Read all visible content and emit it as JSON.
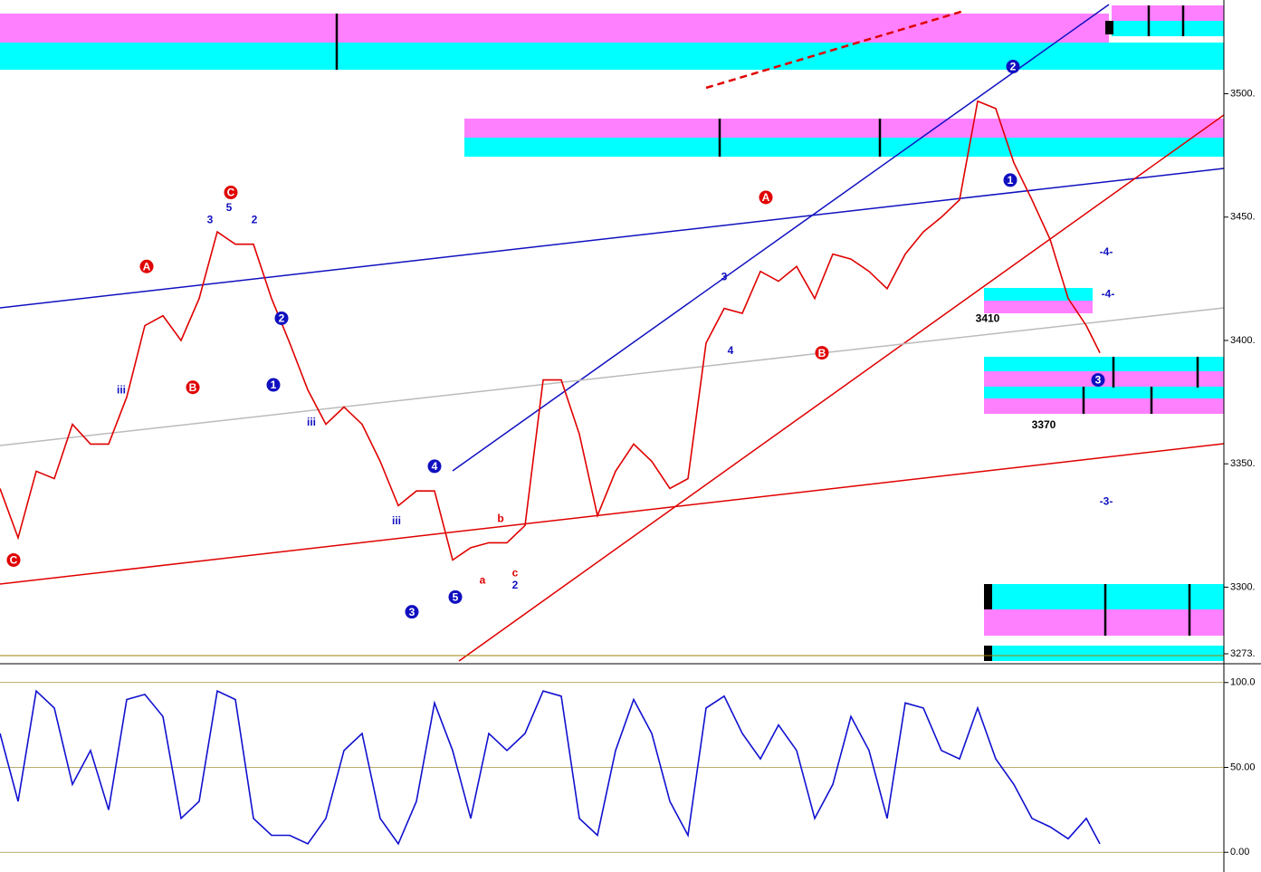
{
  "chart_data": [
    {
      "type": "line",
      "xlim": [
        0,
        135.2
      ],
      "ylim": [
        3273,
        3538
      ],
      "yticks": [
        {
          "value": 3500,
          "label": "3500."
        },
        {
          "value": 3450,
          "label": "3450."
        },
        {
          "value": 3400,
          "label": "3400."
        },
        {
          "value": 3350,
          "label": "3350."
        },
        {
          "value": 3300,
          "label": "3300."
        },
        {
          "value": 3273,
          "label": "3273."
        }
      ],
      "x": [
        0,
        2,
        4,
        6,
        8,
        10,
        12,
        14,
        16,
        18,
        20,
        22,
        24,
        26,
        28,
        30,
        32,
        34,
        36,
        38,
        40,
        42,
        44,
        46,
        48,
        50,
        52,
        54,
        56,
        58,
        60,
        62,
        64,
        66,
        68,
        70,
        72,
        74,
        76,
        78,
        80,
        82,
        84,
        86,
        88,
        90,
        92,
        94,
        96,
        98,
        100,
        102,
        104,
        106,
        108,
        110,
        112,
        114,
        116,
        118,
        120,
        121.5
      ],
      "series": [
        {
          "color": "#e00000",
          "values": [
            3340,
            3320,
            3347,
            3344,
            3366,
            3358,
            3358,
            3377,
            3406,
            3410,
            3400,
            3417,
            3444,
            3439,
            3439,
            3417,
            3399,
            3380,
            3366,
            3373,
            3366,
            3351,
            3333,
            3339,
            3339,
            3311,
            3316,
            3318,
            3318,
            3325,
            3384,
            3384,
            3362,
            3329,
            3347,
            3358,
            3351,
            3340,
            3344,
            3399,
            3413,
            3411,
            3428,
            3424,
            3430,
            3417,
            3435,
            3433,
            3428,
            3421,
            3435,
            3444,
            3450,
            3457,
            3497,
            3494,
            3472,
            3457,
            3441,
            3417,
            3406,
            3395
          ]
        }
      ],
      "annotations": [
        {
          "text": "C",
          "x": 1.5,
          "y": 3311,
          "color": "#e00000",
          "circled": true
        },
        {
          "text": "A",
          "x": 16.2,
          "y": 3430,
          "color": "#e00000",
          "circled": true
        },
        {
          "text": "B",
          "x": 21.3,
          "y": 3381,
          "color": "#e00000",
          "circled": true
        },
        {
          "text": "C",
          "x": 25.5,
          "y": 3460,
          "color": "#e00000",
          "circled": true
        },
        {
          "text": "1",
          "x": 30.2,
          "y": 3382,
          "color": "#1010c0",
          "circled": true
        },
        {
          "text": "2",
          "x": 31.1,
          "y": 3409,
          "color": "#1010c0",
          "circled": true
        },
        {
          "text": "3",
          "x": 45.5,
          "y": 3290,
          "color": "#1010c0",
          "circled": true
        },
        {
          "text": "4",
          "x": 48,
          "y": 3349,
          "color": "#1010c0",
          "circled": true
        },
        {
          "text": "5",
          "x": 50.3,
          "y": 3296,
          "color": "#1010c0",
          "circled": true
        },
        {
          "text": "A",
          "x": 84.6,
          "y": 3458,
          "color": "#e00000",
          "circled": true
        },
        {
          "text": "B",
          "x": 90.8,
          "y": 3395,
          "color": "#e00000",
          "circled": true
        },
        {
          "text": "1",
          "x": 111.6,
          "y": 3465,
          "color": "#1010c0",
          "circled": true
        },
        {
          "text": "2",
          "x": 111.9,
          "y": 3511,
          "color": "#1010c0",
          "circled": true
        },
        {
          "text": "3",
          "x": 121.3,
          "y": 3384,
          "color": "#1010c0",
          "circled": true
        },
        {
          "text": "3410",
          "x": 109.1,
          "y": 3409,
          "color": "#000000",
          "circled": false
        },
        {
          "text": "3370",
          "x": 115.3,
          "y": 3366,
          "color": "#000000",
          "circled": false
        },
        {
          "text": "-4-",
          "x": 122.2,
          "y": 3436,
          "color": "#1010c0",
          "circled": false
        },
        {
          "text": "-4-",
          "x": 122.4,
          "y": 3419,
          "color": "#1010c0",
          "circled": false
        },
        {
          "text": "-3-",
          "x": 122.2,
          "y": 3335,
          "color": "#1010c0",
          "circled": false
        },
        {
          "text": "iii",
          "x": 13.4,
          "y": 3380,
          "color": "#1010c0",
          "circled": false
        },
        {
          "text": "iii",
          "x": 34.4,
          "y": 3367,
          "color": "#1010c0",
          "circled": false
        },
        {
          "text": "iii",
          "x": 43.8,
          "y": 3327,
          "color": "#1010c0",
          "circled": false
        },
        {
          "text": "3",
          "x": 23.2,
          "y": 3449,
          "color": "#1010c0",
          "circled": false
        },
        {
          "text": "5",
          "x": 25.3,
          "y": 3454,
          "color": "#1010c0",
          "circled": false
        },
        {
          "text": "2",
          "x": 28.1,
          "y": 3449,
          "color": "#1010c0",
          "circled": false
        },
        {
          "text": "3",
          "x": 80,
          "y": 3426,
          "color": "#1010c0",
          "circled": false
        },
        {
          "text": "4",
          "x": 80.7,
          "y": 3396,
          "color": "#1010c0",
          "circled": false
        },
        {
          "text": "a",
          "x": 53.3,
          "y": 3303,
          "color": "#e00000",
          "circled": false
        },
        {
          "text": "b",
          "x": 55.3,
          "y": 3328,
          "color": "#e00000",
          "circled": false
        },
        {
          "text": "c",
          "x": 56.9,
          "y": 3306,
          "color": "#e00000",
          "circled": false
        },
        {
          "text": "2",
          "x": 56.9,
          "y": 3301,
          "color": "#1010c0",
          "circled": false
        }
      ]
    },
    {
      "type": "line",
      "xlim": [
        0,
        135.2
      ],
      "ylim": [
        -10,
        110
      ],
      "yticks": [
        {
          "value": 100,
          "label": "100.0"
        },
        {
          "value": 50,
          "label": "50.00"
        },
        {
          "value": 0,
          "label": "0.00"
        }
      ],
      "x": [
        0,
        2,
        4,
        6,
        8,
        10,
        12,
        14,
        16,
        18,
        20,
        22,
        24,
        26,
        28,
        30,
        32,
        34,
        36,
        38,
        40,
        42,
        44,
        46,
        48,
        50,
        52,
        54,
        56,
        58,
        60,
        62,
        64,
        66,
        68,
        70,
        72,
        74,
        76,
        78,
        80,
        82,
        84,
        86,
        88,
        90,
        92,
        94,
        96,
        98,
        100,
        102,
        104,
        106,
        108,
        110,
        112,
        114,
        116,
        118,
        120,
        121.5
      ],
      "series": [
        {
          "color": "#1010d0",
          "values": [
            70,
            30,
            95,
            85,
            40,
            60,
            25,
            90,
            93,
            80,
            20,
            30,
            95,
            90,
            20,
            10,
            10,
            5,
            20,
            60,
            70,
            20,
            5,
            30,
            88,
            60,
            20,
            70,
            60,
            70,
            95,
            92,
            20,
            10,
            60,
            90,
            70,
            30,
            10,
            85,
            92,
            70,
            55,
            75,
            60,
            20,
            40,
            80,
            60,
            20,
            88,
            85,
            60,
            55,
            85,
            55,
            40,
            20,
            15,
            8,
            20,
            5
          ]
        }
      ]
    }
  ]
}
